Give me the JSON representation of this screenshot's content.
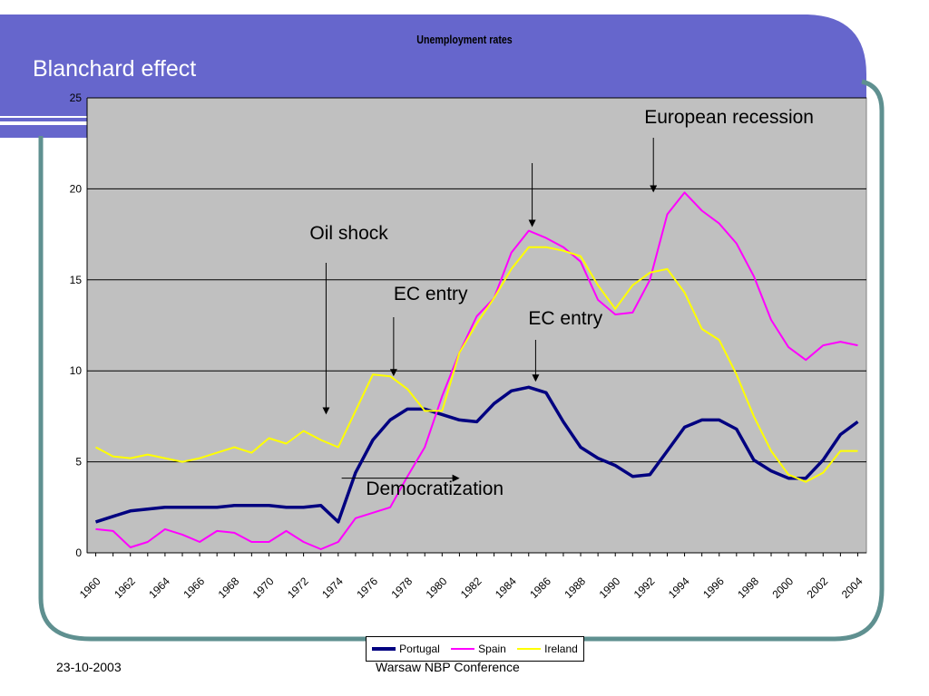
{
  "slide": {
    "title": "Blanchard effect",
    "footer_date": "23-10-2003",
    "footer_conference": "Warsaw NBP Conference",
    "colors": {
      "header_band": "#6666cc",
      "frame": "#5f9090",
      "plot_bg": "#c0c0c0"
    }
  },
  "chart_data": {
    "type": "line",
    "title": "Unemployment rates",
    "xlabel": "",
    "ylabel": "",
    "ylim": [
      0,
      25
    ],
    "yticks": [
      "0",
      "5",
      "10",
      "15",
      "20",
      "25"
    ],
    "xticks": [
      "1960",
      "1962",
      "1964",
      "1966",
      "1968",
      "1970",
      "1972",
      "1974",
      "1976",
      "1978",
      "1980",
      "1982",
      "1984",
      "1986",
      "1988",
      "1990",
      "1992",
      "1994",
      "1996",
      "1998",
      "2000",
      "2002",
      "2004"
    ],
    "x": [
      1960,
      1961,
      1962,
      1963,
      1964,
      1965,
      1966,
      1967,
      1968,
      1969,
      1970,
      1971,
      1972,
      1973,
      1974,
      1975,
      1976,
      1977,
      1978,
      1979,
      1980,
      1981,
      1982,
      1983,
      1984,
      1985,
      1986,
      1987,
      1988,
      1989,
      1990,
      1991,
      1992,
      1993,
      1994,
      1995,
      1996,
      1997,
      1998,
      1999,
      2000,
      2001,
      2002,
      2003,
      2004
    ],
    "grid": "horizontal",
    "legend_position": "bottom",
    "series": [
      {
        "name": "Portugal",
        "color": "#000080",
        "values": [
          1.7,
          2.0,
          2.3,
          2.4,
          2.5,
          2.5,
          2.5,
          2.5,
          2.6,
          2.6,
          2.6,
          2.5,
          2.5,
          2.6,
          1.7,
          4.4,
          6.2,
          7.3,
          7.9,
          7.9,
          7.6,
          7.3,
          7.2,
          8.2,
          8.9,
          9.1,
          8.8,
          7.2,
          5.8,
          5.2,
          4.8,
          4.2,
          4.3,
          5.6,
          6.9,
          7.3,
          7.3,
          6.8,
          5.1,
          4.5,
          4.1,
          4.1,
          5.1,
          6.5,
          7.2
        ]
      },
      {
        "name": "Spain",
        "color": "#ff00ff",
        "values": [
          1.3,
          1.2,
          0.3,
          0.6,
          1.3,
          1.0,
          0.6,
          1.2,
          1.1,
          0.6,
          0.6,
          1.2,
          0.6,
          0.2,
          0.6,
          1.9,
          2.2,
          2.5,
          4.2,
          5.8,
          8.6,
          11.0,
          13.0,
          14.0,
          16.5,
          17.7,
          17.3,
          16.8,
          16.0,
          13.9,
          13.1,
          13.2,
          15.0,
          18.6,
          19.8,
          18.8,
          18.1,
          17.0,
          15.2,
          12.8,
          11.3,
          10.6,
          11.4,
          11.6,
          11.4
        ]
      },
      {
        "name": "Ireland",
        "color": "#ffff00",
        "values": [
          5.8,
          5.3,
          5.2,
          5.4,
          5.2,
          5.0,
          5.2,
          5.5,
          5.8,
          5.5,
          6.3,
          6.0,
          6.7,
          6.2,
          5.8,
          7.8,
          9.8,
          9.7,
          9.0,
          7.8,
          7.8,
          11.0,
          12.6,
          14.0,
          15.6,
          16.8,
          16.8,
          16.6,
          16.3,
          14.7,
          13.4,
          14.7,
          15.4,
          15.6,
          14.3,
          12.3,
          11.7,
          9.8,
          7.5,
          5.6,
          4.3,
          3.9,
          4.4,
          5.6,
          5.6
        ]
      }
    ],
    "annotations": [
      {
        "text": "European recession",
        "year": 1992.2,
        "value": 19.8
      },
      {
        "text": "Oil shock",
        "year": 1973.3,
        "value": 7.8
      },
      {
        "text": "EC entry",
        "year": 1977.2,
        "value": 9.9
      },
      {
        "text": "EC entry",
        "year": 1985.4,
        "value": 9.6
      },
      {
        "text": "",
        "year": 1985.2,
        "value": 18.1
      },
      {
        "text": "Democratization",
        "year": 1979.3,
        "value": 4.1
      }
    ]
  }
}
